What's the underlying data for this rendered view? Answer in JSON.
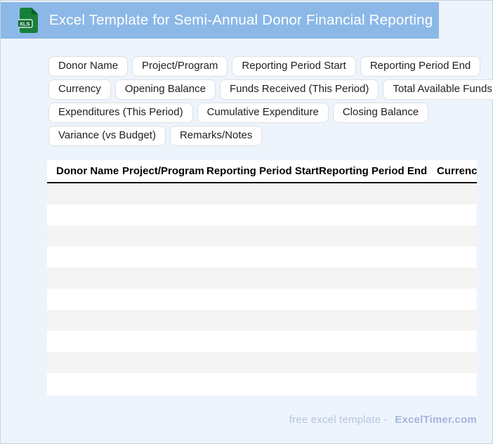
{
  "header": {
    "title": "Excel Template for Semi-Annual Donor Financial Reporting",
    "icon_label": "XLS",
    "bar_color": "#8cb8e8",
    "icon_green": "#188038",
    "icon_fold_green": "#0c5f2c"
  },
  "chips": {
    "rows": [
      [
        "Donor Name",
        "Project/Program",
        "Reporting Period Start",
        "Reporting Period End"
      ],
      [
        "Currency",
        "Opening Balance",
        "Funds Received (This Period)",
        "Total Available Funds"
      ],
      [
        "Expenditures (This Period)",
        "Cumulative Expenditure",
        "Closing Balance"
      ],
      [
        "Variance (vs Budget)",
        "Remarks/Notes"
      ]
    ]
  },
  "table": {
    "columns": [
      "Donor Name",
      "Project/Program",
      "Reporting Period Start",
      "Reporting Period End",
      "Currency"
    ],
    "row_count": 10,
    "stripe_color": "#f5f4f4",
    "header_rule_color": "#111111"
  },
  "footer": {
    "prefix": "free excel template -",
    "brand": "ExcelTimer.com"
  },
  "colors": {
    "page_background": "#edf4fc",
    "header_bar": "#8cb8e8",
    "chip_border": "#e0e0e0",
    "footer_prefix": "#b7c3df",
    "footer_brand": "#a6b4dc"
  }
}
